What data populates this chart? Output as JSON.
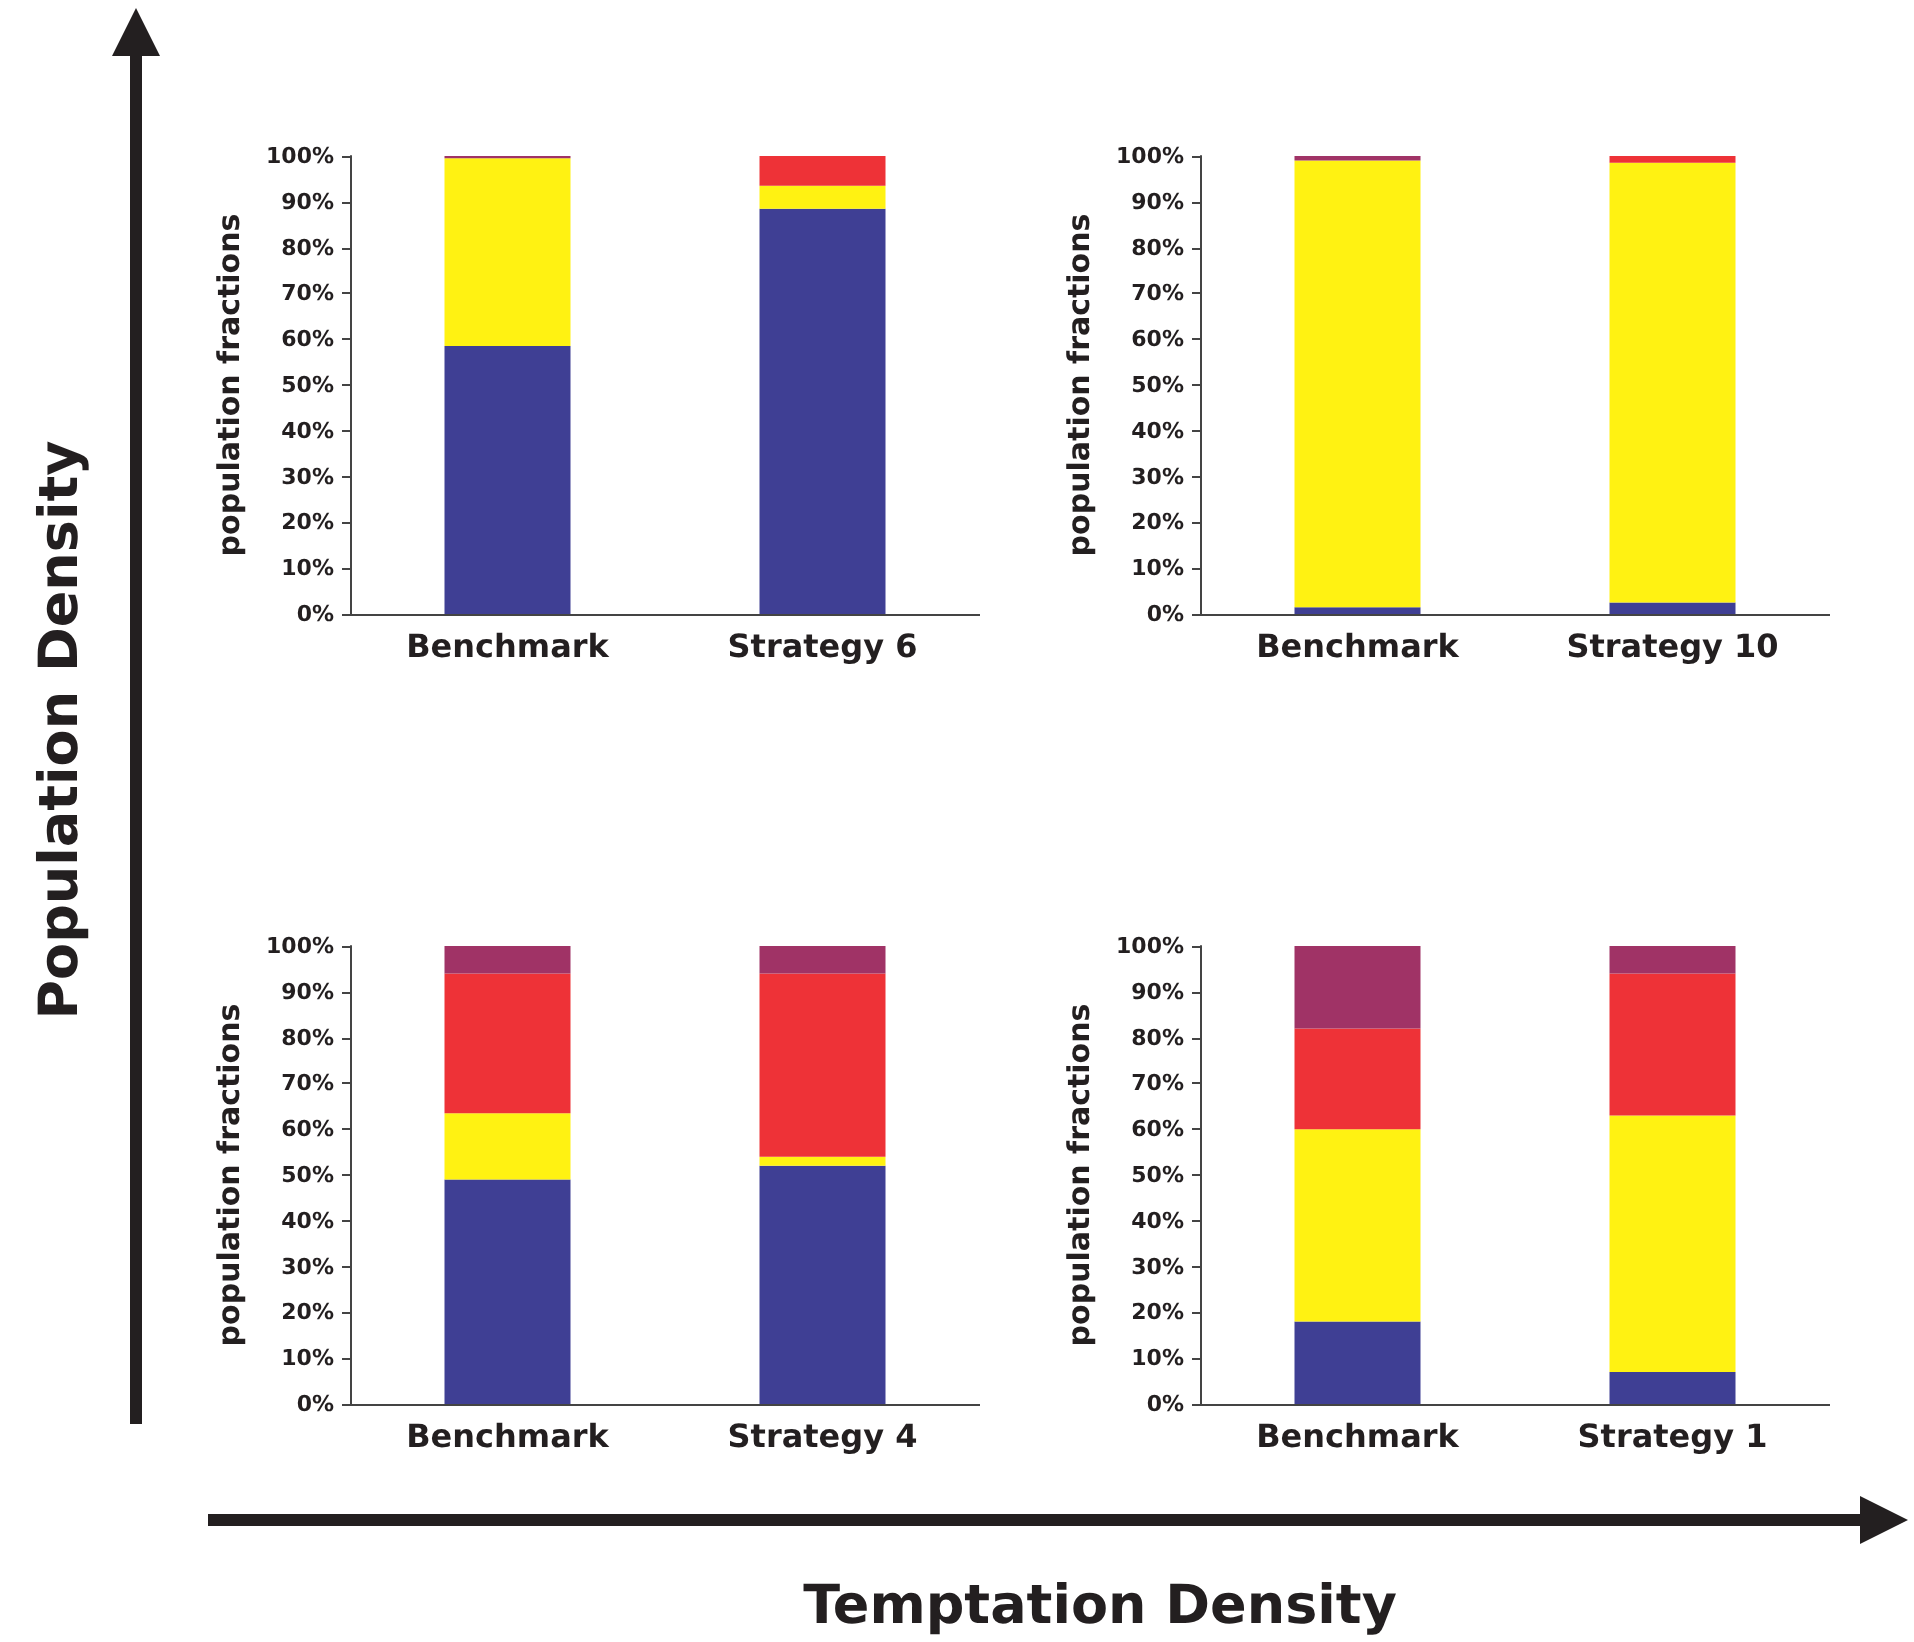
{
  "chart_data": [
    {
      "type": "bar",
      "stacked": true,
      "ylabel": "population fractions",
      "categories": [
        "Benchmark",
        "Strategy 6"
      ],
      "ylim": [
        0,
        100
      ],
      "yticks": [
        {
          "value": 0,
          "label": "0%"
        },
        {
          "value": 10,
          "label": "10%"
        },
        {
          "value": 20,
          "label": "20%"
        },
        {
          "value": 30,
          "label": "30%"
        },
        {
          "value": 40,
          "label": "40%"
        },
        {
          "value": 50,
          "label": "50%"
        },
        {
          "value": 60,
          "label": "60%"
        },
        {
          "value": 70,
          "label": "70%"
        },
        {
          "value": 80,
          "label": "80%"
        },
        {
          "value": 90,
          "label": "90%"
        },
        {
          "value": 100,
          "label": "100%"
        }
      ],
      "grid": false,
      "series": [
        {
          "color": "#3f3f94",
          "values": [
            58.5,
            88.5
          ]
        },
        {
          "color": "#fff212",
          "values": [
            41,
            5
          ]
        },
        {
          "color": "#ee3237",
          "values": [
            0,
            6.5
          ]
        },
        {
          "color": "#a03366",
          "values": [
            0.5,
            0
          ]
        }
      ]
    },
    {
      "type": "bar",
      "stacked": true,
      "ylabel": "population fractions",
      "categories": [
        "Benchmark",
        "Strategy 10"
      ],
      "ylim": [
        0,
        100
      ],
      "yticks": [
        {
          "value": 0,
          "label": "0%"
        },
        {
          "value": 10,
          "label": "10%"
        },
        {
          "value": 20,
          "label": "20%"
        },
        {
          "value": 30,
          "label": "30%"
        },
        {
          "value": 40,
          "label": "40%"
        },
        {
          "value": 50,
          "label": "50%"
        },
        {
          "value": 60,
          "label": "60%"
        },
        {
          "value": 70,
          "label": "70%"
        },
        {
          "value": 80,
          "label": "80%"
        },
        {
          "value": 90,
          "label": "90%"
        },
        {
          "value": 100,
          "label": "100%"
        }
      ],
      "grid": false,
      "series": [
        {
          "color": "#3f3f94",
          "values": [
            1.5,
            2.5
          ]
        },
        {
          "color": "#fff212",
          "values": [
            97.5,
            96
          ]
        },
        {
          "color": "#ee3237",
          "values": [
            0,
            1.5
          ]
        },
        {
          "color": "#a03366",
          "values": [
            1,
            0
          ]
        }
      ]
    },
    {
      "type": "bar",
      "stacked": true,
      "ylabel": "population fractions",
      "categories": [
        "Benchmark",
        "Strategy 4"
      ],
      "ylim": [
        0,
        100
      ],
      "yticks": [
        {
          "value": 0,
          "label": "0%"
        },
        {
          "value": 10,
          "label": "10%"
        },
        {
          "value": 20,
          "label": "20%"
        },
        {
          "value": 30,
          "label": "30%"
        },
        {
          "value": 40,
          "label": "40%"
        },
        {
          "value": 50,
          "label": "50%"
        },
        {
          "value": 60,
          "label": "60%"
        },
        {
          "value": 70,
          "label": "70%"
        },
        {
          "value": 80,
          "label": "80%"
        },
        {
          "value": 90,
          "label": "90%"
        },
        {
          "value": 100,
          "label": "100%"
        }
      ],
      "grid": false,
      "series": [
        {
          "color": "#3f3f94",
          "values": [
            49,
            52
          ]
        },
        {
          "color": "#fff212",
          "values": [
            14.5,
            2
          ]
        },
        {
          "color": "#ee3237",
          "values": [
            30.5,
            40
          ]
        },
        {
          "color": "#a03366",
          "values": [
            6,
            6
          ]
        }
      ]
    },
    {
      "type": "bar",
      "stacked": true,
      "ylabel": "population fractions",
      "categories": [
        "Benchmark",
        "Strategy 1"
      ],
      "ylim": [
        0,
        100
      ],
      "yticks": [
        {
          "value": 0,
          "label": "0%"
        },
        {
          "value": 10,
          "label": "10%"
        },
        {
          "value": 20,
          "label": "20%"
        },
        {
          "value": 30,
          "label": "30%"
        },
        {
          "value": 40,
          "label": "40%"
        },
        {
          "value": 50,
          "label": "50%"
        },
        {
          "value": 60,
          "label": "60%"
        },
        {
          "value": 70,
          "label": "70%"
        },
        {
          "value": 80,
          "label": "80%"
        },
        {
          "value": 90,
          "label": "90%"
        },
        {
          "value": 100,
          "label": "100%"
        }
      ],
      "grid": false,
      "series": [
        {
          "color": "#3f3f94",
          "values": [
            18,
            7
          ]
        },
        {
          "color": "#fff212",
          "values": [
            42,
            56
          ]
        },
        {
          "color": "#ee3237",
          "values": [
            22,
            31
          ]
        },
        {
          "color": "#a03366",
          "values": [
            18,
            6
          ]
        }
      ]
    },
    {
      "type": "other",
      "xlabel": "Temptation Density",
      "ylabel": "Population Density"
    }
  ]
}
